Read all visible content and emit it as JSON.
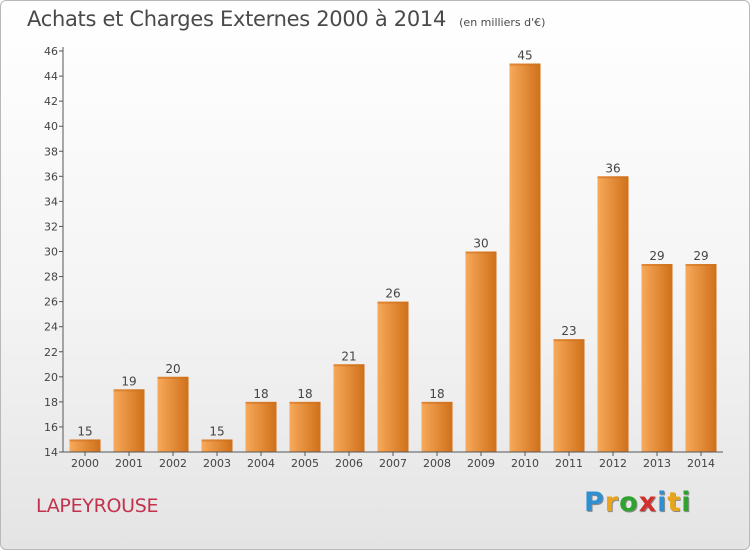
{
  "header": {
    "title": "Achats et Charges Externes 2000 à 2014",
    "subtitle": "(en milliers d'€)"
  },
  "commune": "LAPEYROUSE",
  "logo": {
    "letters": [
      "P",
      "r",
      "o",
      "x",
      "i",
      "t",
      "i"
    ],
    "colors": [
      "#2f8fd0",
      "#e8a51c",
      "#2ea32e",
      "#d0312d",
      "#2f8fd0",
      "#e8a51c",
      "#2ea32e"
    ]
  },
  "chart_data": {
    "type": "bar",
    "title": "Achats et Charges Externes 2000 à 2014",
    "xlabel": "",
    "ylabel": "",
    "categories": [
      "2000",
      "2001",
      "2002",
      "2003",
      "2004",
      "2005",
      "2006",
      "2007",
      "2008",
      "2009",
      "2010",
      "2011",
      "2012",
      "2013",
      "2014"
    ],
    "values": [
      15,
      19,
      20,
      15,
      18,
      18,
      21,
      26,
      18,
      30,
      45,
      23,
      36,
      29,
      29
    ],
    "ylim": [
      14,
      46
    ],
    "yticks": [
      "14",
      "16",
      "18",
      "20",
      "22",
      "24",
      "26",
      "28",
      "30",
      "32",
      "34",
      "36",
      "38",
      "40",
      "42",
      "44",
      "46"
    ],
    "grid": false,
    "colors": {
      "bar_light": "#f7a95a",
      "bar_dark": "#cf7019",
      "axis": "#555555",
      "text": "#444444"
    }
  }
}
